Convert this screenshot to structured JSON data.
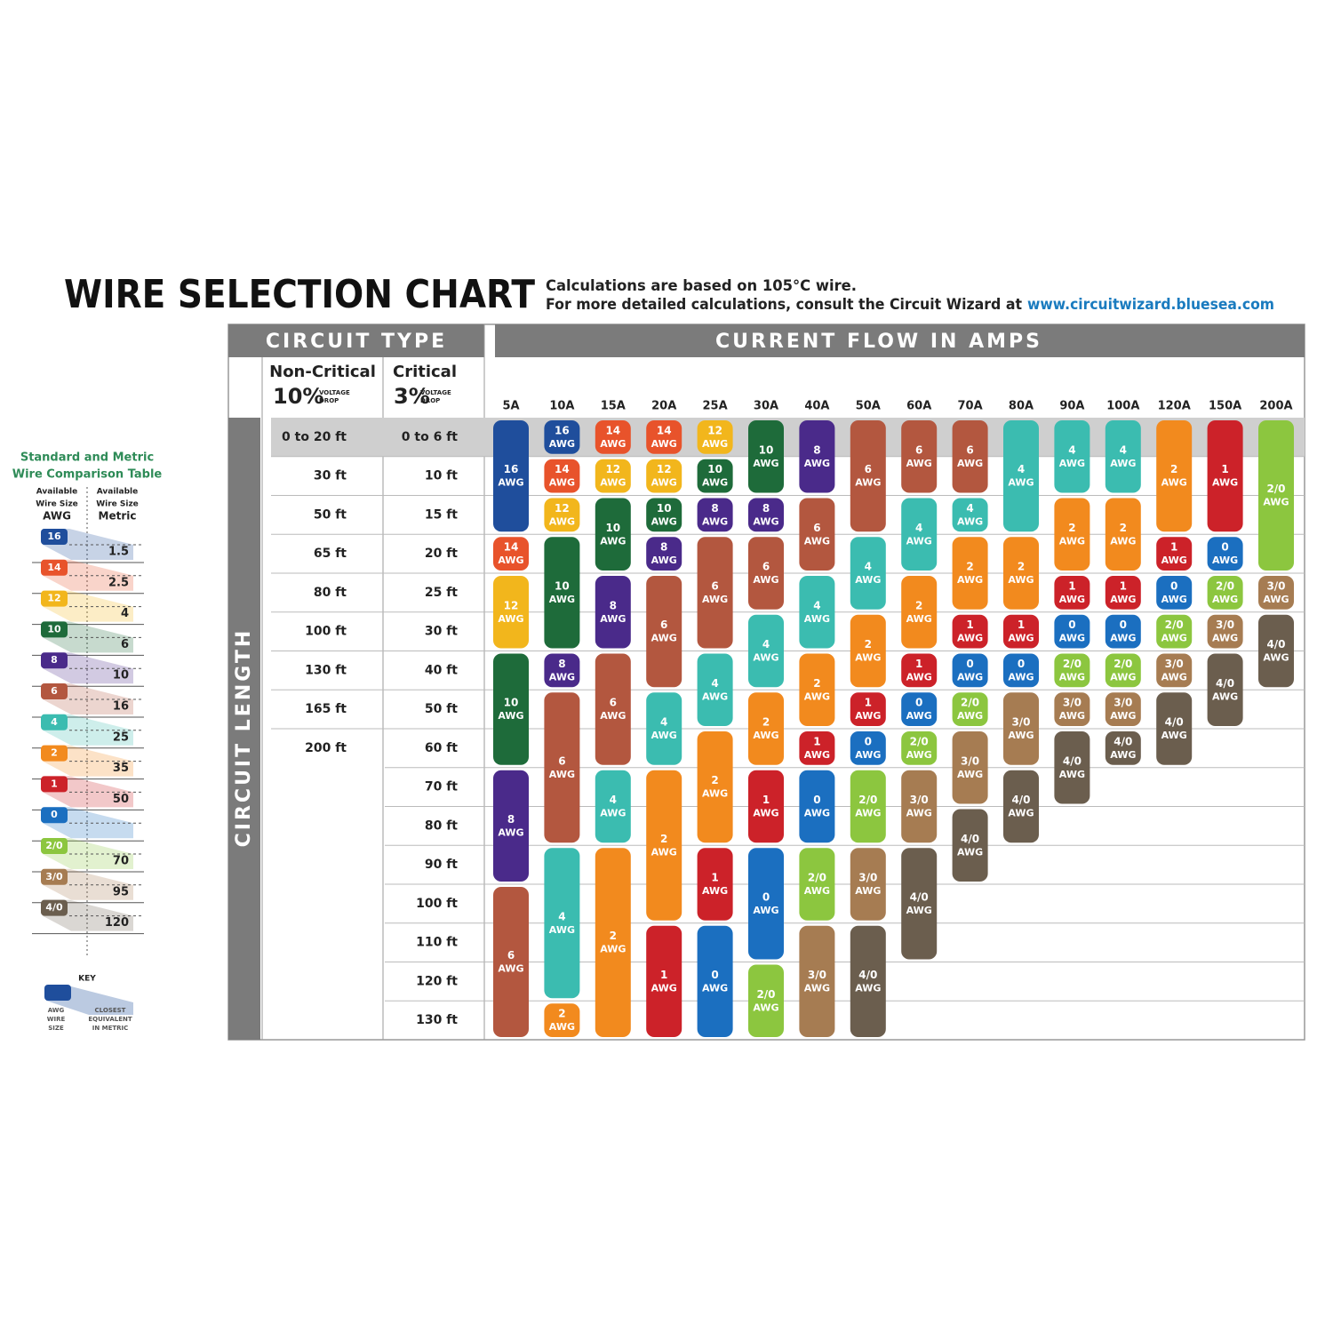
{
  "header": {
    "title": "WIRE SELECTION CHART",
    "note_1": "Calculations are based on 105°C wire.",
    "note_2": "For more detailed calculations, consult the Circuit Wizard at",
    "link": "www.circuitwizard.bluesea.com"
  },
  "table": {
    "circuit_type": "CIRCUIT TYPE",
    "current_flow": "CURRENT FLOW IN AMPS",
    "circuit_length": "CIRCUIT LENGTH",
    "non_critical": {
      "name": "Non-Critical",
      "percent": "10%",
      "note": [
        "VOLTAGE",
        "DROP"
      ]
    },
    "critical": {
      "name": "Critical",
      "percent": "3%",
      "note": [
        "VOLTAGE",
        "DROP"
      ]
    },
    "non_critical_lengths": [
      "0 to 20 ft",
      "30 ft",
      "50 ft",
      "65 ft",
      "80 ft",
      "100 ft",
      "130 ft",
      "165 ft",
      "200 ft"
    ],
    "critical_lengths": [
      "0 to 6 ft",
      "10 ft",
      "15 ft",
      "20 ft",
      "25 ft",
      "30 ft",
      "40 ft",
      "50 ft",
      "60 ft",
      "70 ft",
      "80 ft",
      "90 ft",
      "100 ft",
      "110 ft",
      "120 ft",
      "130 ft"
    ],
    "unit": "AWG",
    "colors": {
      "16": "#1f4e9c",
      "14": "#e8532b",
      "12": "#f2b61c",
      "10": "#1e6b3a",
      "8": "#4a2a8a",
      "6": "#b3573f",
      "4": "#3bbcb0",
      "2": "#f28a1e",
      "1": "#cc2229",
      "0": "#1b6fc0",
      "2/0": "#8cc63f",
      "3/0": "#a67c52",
      "4/0": "#6b5e4e"
    },
    "columns": [
      {
        "amps": "5A",
        "cells": [
          "16",
          "16",
          "16",
          "14",
          "12",
          "12",
          "10",
          "10",
          "10",
          "8",
          "8",
          "8",
          "6",
          "6",
          "6",
          "6"
        ]
      },
      {
        "amps": "10A",
        "cells": [
          "16",
          "14",
          "12",
          "10",
          "10",
          "10",
          "8",
          "6",
          "6",
          "6",
          "6",
          "4",
          "4",
          "4",
          "4",
          "2"
        ]
      },
      {
        "amps": "15A",
        "cells": [
          "14",
          "12",
          "10",
          "10",
          "8",
          "8",
          "6",
          "6",
          "6",
          "4",
          "4",
          "2",
          "2",
          "2",
          "2",
          "2"
        ]
      },
      {
        "amps": "20A",
        "cells": [
          "14",
          "12",
          "10",
          "8",
          "6",
          "6",
          "6",
          "4",
          "4",
          "2",
          "2",
          "2",
          "2",
          "1",
          "1",
          "1"
        ]
      },
      {
        "amps": "25A",
        "cells": [
          "12",
          "10",
          "8",
          "6",
          "6",
          "6",
          "4",
          "4",
          "2",
          "2",
          "2",
          "1",
          "1",
          "0",
          "0",
          "0"
        ]
      },
      {
        "amps": "30A",
        "cells": [
          "10",
          "10",
          "8",
          "6",
          "6",
          "4",
          "4",
          "2",
          "2",
          "1",
          "1",
          "0",
          "0",
          "0",
          "2/0",
          "2/0"
        ]
      },
      {
        "amps": "40A",
        "cells": [
          "8",
          "8",
          "6",
          "6",
          "4",
          "4",
          "2",
          "2",
          "1",
          "0",
          "0",
          "2/0",
          "2/0",
          "3/0",
          "3/0",
          "3/0"
        ]
      },
      {
        "amps": "50A",
        "cells": [
          "6",
          "6",
          "6",
          "4",
          "4",
          "2",
          "2",
          "1",
          "0",
          "2/0",
          "2/0",
          "3/0",
          "3/0",
          "4/0",
          "4/0",
          "4/0"
        ]
      },
      {
        "amps": "60A",
        "cells": [
          "6",
          "6",
          "4",
          "4",
          "2",
          "2",
          "1",
          "0",
          "2/0",
          "3/0",
          "3/0",
          "4/0",
          "4/0",
          "4/0",
          null,
          null
        ]
      },
      {
        "amps": "70A",
        "cells": [
          "6",
          "6",
          "4",
          "2",
          "2",
          "1",
          "0",
          "2/0",
          "3/0",
          "3/0",
          "4/0",
          "4/0",
          null,
          null,
          null,
          null
        ]
      },
      {
        "amps": "80A",
        "cells": [
          "4",
          "4",
          "4",
          "2",
          "2",
          "1",
          "0",
          "3/0",
          "3/0",
          "4/0",
          "4/0",
          null,
          null,
          null,
          null,
          null
        ]
      },
      {
        "amps": "90A",
        "cells": [
          "4",
          "4",
          "2",
          "2",
          "1",
          "0",
          "2/0",
          "3/0",
          "4/0",
          "4/0",
          null,
          null,
          null,
          null,
          null,
          null
        ]
      },
      {
        "amps": "100A",
        "cells": [
          "4",
          "4",
          "2",
          "2",
          "1",
          "0",
          "2/0",
          "3/0",
          "4/0",
          null,
          null,
          null,
          null,
          null,
          null,
          null
        ]
      },
      {
        "amps": "120A",
        "cells": [
          "2",
          "2",
          "2",
          "1",
          "0",
          "2/0",
          "3/0",
          "4/0",
          "4/0",
          null,
          null,
          null,
          null,
          null,
          null,
          null
        ]
      },
      {
        "amps": "150A",
        "cells": [
          "1",
          "1",
          "1",
          "0",
          "2/0",
          "3/0",
          "4/0",
          "4/0",
          null,
          null,
          null,
          null,
          null,
          null,
          null,
          null
        ]
      },
      {
        "amps": "200A",
        "cells": [
          "2/0",
          "2/0",
          "2/0",
          "2/0",
          "3/0",
          "4/0",
          "4/0",
          null,
          null,
          null,
          null,
          null,
          null,
          null,
          null,
          null
        ]
      }
    ]
  },
  "comparison": {
    "title": [
      "Standard and Metric",
      "Wire Comparison Table"
    ],
    "awg_header": [
      "Available",
      "Wire Size",
      "AWG"
    ],
    "metric_header": [
      "Available",
      "Wire Size",
      "Metric"
    ],
    "rows": [
      {
        "awg": "16",
        "metric": "1.5"
      },
      {
        "awg": "14",
        "metric": "2.5"
      },
      {
        "awg": "12",
        "metric": "4"
      },
      {
        "awg": "10",
        "metric": "6"
      },
      {
        "awg": "8",
        "metric": "10"
      },
      {
        "awg": "6",
        "metric": "16"
      },
      {
        "awg": "4",
        "metric": "25"
      },
      {
        "awg": "2",
        "metric": "35"
      },
      {
        "awg": "1",
        "metric": "50"
      },
      {
        "awg": "0"
      },
      {
        "awg": "2/0",
        "metric": "70"
      },
      {
        "awg": "3/0",
        "metric": "95"
      },
      {
        "awg": "4/0",
        "metric": "120"
      }
    ],
    "key": "KEY",
    "key_awg": [
      "AWG",
      "WIRE",
      "SIZE"
    ],
    "key_metric": [
      "CLOSEST",
      "EQUIVALENT",
      "IN METRIC"
    ]
  }
}
